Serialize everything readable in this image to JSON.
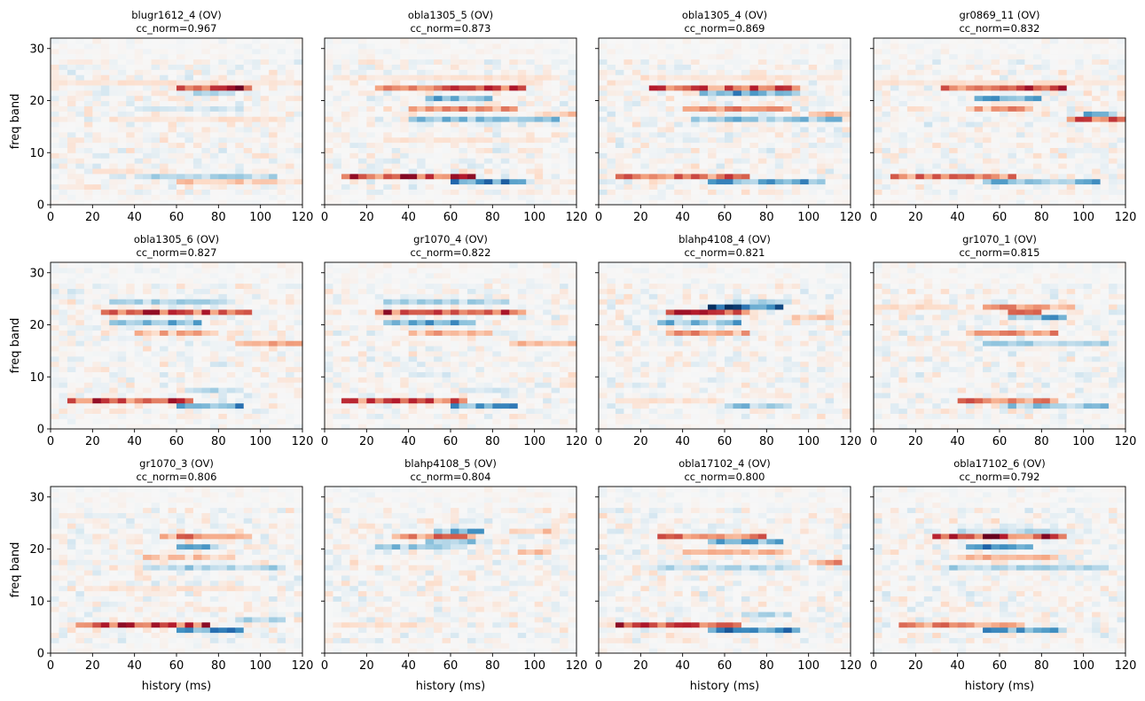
{
  "figure": {
    "xlabel": "history (ms)",
    "ylabel": "freq band",
    "colormap": "RdBu_r"
  },
  "chart_data": [
    {
      "type": "heatmap",
      "title": "blugr1612_4 (OV)",
      "subtitle": "cc_norm=0.967",
      "xlim": [
        0,
        120
      ],
      "ylim": [
        0,
        32
      ],
      "xticks": [
        0,
        20,
        40,
        60,
        80,
        100,
        120
      ],
      "yticks": [
        0,
        10,
        20,
        30
      ],
      "features": [
        {
          "band": 22,
          "from": 60,
          "to": 95,
          "value": 0.9
        },
        {
          "band": 23,
          "from": 65,
          "to": 80,
          "value": -0.5
        },
        {
          "band": 21,
          "from": 70,
          "to": 85,
          "value": -0.4
        },
        {
          "band": 23,
          "from": 0,
          "to": 120,
          "value": 0.15
        },
        {
          "band": 18,
          "from": 40,
          "to": 90,
          "value": -0.2
        },
        {
          "band": 16,
          "from": 30,
          "to": 110,
          "value": 0.15
        },
        {
          "band": 5,
          "from": 40,
          "to": 105,
          "value": -0.35
        },
        {
          "band": 4,
          "from": 60,
          "to": 110,
          "value": 0.3
        },
        {
          "band": 6,
          "from": 20,
          "to": 60,
          "value": 0.15
        }
      ]
    },
    {
      "type": "heatmap",
      "title": "obla1305_5 (OV)",
      "subtitle": "cc_norm=0.873",
      "xlim": [
        0,
        120
      ],
      "ylim": [
        0,
        32
      ],
      "xticks": [
        0,
        20,
        40,
        60,
        80,
        100,
        120
      ],
      "yticks": [
        0,
        10,
        20,
        30
      ],
      "features": [
        {
          "band": 22,
          "from": 25,
          "to": 95,
          "value": 0.7
        },
        {
          "band": 20,
          "from": 50,
          "to": 80,
          "value": -0.55
        },
        {
          "band": 18,
          "from": 40,
          "to": 90,
          "value": 0.5
        },
        {
          "band": 16,
          "from": 40,
          "to": 110,
          "value": -0.45
        },
        {
          "band": 17,
          "from": 100,
          "to": 120,
          "value": 0.35
        },
        {
          "band": 5,
          "from": 10,
          "to": 70,
          "value": 0.8
        },
        {
          "band": 4,
          "from": 60,
          "to": 95,
          "value": -0.75
        },
        {
          "band": 12,
          "from": 30,
          "to": 100,
          "value": 0.15
        },
        {
          "band": 24,
          "from": 20,
          "to": 110,
          "value": 0.15
        }
      ]
    },
    {
      "type": "heatmap",
      "title": "obla1305_4 (OV)",
      "subtitle": "cc_norm=0.869",
      "xlim": [
        0,
        120
      ],
      "ylim": [
        0,
        32
      ],
      "xticks": [
        0,
        20,
        40,
        60,
        80,
        100,
        120
      ],
      "yticks": [
        0,
        10,
        20,
        30
      ],
      "features": [
        {
          "band": 22,
          "from": 25,
          "to": 95,
          "value": 0.7
        },
        {
          "band": 21,
          "from": 50,
          "to": 95,
          "value": -0.65
        },
        {
          "band": 18,
          "from": 40,
          "to": 90,
          "value": 0.45
        },
        {
          "band": 16,
          "from": 45,
          "to": 115,
          "value": -0.45
        },
        {
          "band": 17,
          "from": 100,
          "to": 120,
          "value": 0.4
        },
        {
          "band": 5,
          "from": 10,
          "to": 70,
          "value": 0.6
        },
        {
          "band": 4,
          "from": 55,
          "to": 105,
          "value": -0.6
        },
        {
          "band": 24,
          "from": 20,
          "to": 110,
          "value": 0.15
        }
      ]
    },
    {
      "type": "heatmap",
      "title": "gr0869_11 (OV)",
      "subtitle": "cc_norm=0.832",
      "xlim": [
        0,
        120
      ],
      "ylim": [
        0,
        32
      ],
      "xticks": [
        0,
        20,
        40,
        60,
        80,
        100,
        120
      ],
      "yticks": [
        0,
        10,
        20,
        30
      ],
      "features": [
        {
          "band": 22,
          "from": 35,
          "to": 90,
          "value": 0.7
        },
        {
          "band": 20,
          "from": 50,
          "to": 80,
          "value": -0.6
        },
        {
          "band": 18,
          "from": 45,
          "to": 75,
          "value": 0.45
        },
        {
          "band": 16,
          "from": 95,
          "to": 120,
          "value": 0.65
        },
        {
          "band": 17,
          "from": 100,
          "to": 115,
          "value": -0.5
        },
        {
          "band": 5,
          "from": 10,
          "to": 65,
          "value": 0.6
        },
        {
          "band": 4,
          "from": 55,
          "to": 105,
          "value": -0.55
        },
        {
          "band": 23,
          "from": 0,
          "to": 120,
          "value": 0.15
        }
      ]
    },
    {
      "type": "heatmap",
      "title": "obla1305_6 (OV)",
      "subtitle": "cc_norm=0.827",
      "xlim": [
        0,
        120
      ],
      "ylim": [
        0,
        32
      ],
      "xticks": [
        0,
        20,
        40,
        60,
        80,
        100,
        120
      ],
      "yticks": [
        0,
        10,
        20,
        30
      ],
      "features": [
        {
          "band": 22,
          "from": 25,
          "to": 95,
          "value": 0.75
        },
        {
          "band": 20,
          "from": 30,
          "to": 70,
          "value": -0.6
        },
        {
          "band": 18,
          "from": 40,
          "to": 80,
          "value": 0.4
        },
        {
          "band": 24,
          "from": 30,
          "to": 85,
          "value": -0.35
        },
        {
          "band": 16,
          "from": 90,
          "to": 120,
          "value": 0.4
        },
        {
          "band": 5,
          "from": 10,
          "to": 65,
          "value": 0.75
        },
        {
          "band": 4,
          "from": 60,
          "to": 90,
          "value": -0.65
        },
        {
          "band": 7,
          "from": 65,
          "to": 85,
          "value": -0.3
        }
      ]
    },
    {
      "type": "heatmap",
      "title": "gr1070_4 (OV)",
      "subtitle": "cc_norm=0.822",
      "xlim": [
        0,
        120
      ],
      "ylim": [
        0,
        32
      ],
      "xticks": [
        0,
        20,
        40,
        60,
        80,
        100,
        120
      ],
      "yticks": [
        0,
        10,
        20,
        30
      ],
      "features": [
        {
          "band": 22,
          "from": 25,
          "to": 95,
          "value": 0.75
        },
        {
          "band": 20,
          "from": 30,
          "to": 70,
          "value": -0.6
        },
        {
          "band": 18,
          "from": 40,
          "to": 80,
          "value": 0.4
        },
        {
          "band": 24,
          "from": 30,
          "to": 85,
          "value": -0.35
        },
        {
          "band": 16,
          "from": 90,
          "to": 120,
          "value": 0.4
        },
        {
          "band": 5,
          "from": 10,
          "to": 65,
          "value": 0.7
        },
        {
          "band": 4,
          "from": 60,
          "to": 90,
          "value": -0.6
        },
        {
          "band": 7,
          "from": 65,
          "to": 85,
          "value": -0.3
        }
      ]
    },
    {
      "type": "heatmap",
      "title": "blahp4108_4 (OV)",
      "subtitle": "cc_norm=0.821",
      "xlim": [
        0,
        120
      ],
      "ylim": [
        0,
        32
      ],
      "xticks": [
        0,
        20,
        40,
        60,
        80,
        100,
        120
      ],
      "yticks": [
        0,
        10,
        20,
        30
      ],
      "features": [
        {
          "band": 23,
          "from": 55,
          "to": 85,
          "value": -0.95
        },
        {
          "band": 22,
          "from": 35,
          "to": 70,
          "value": 0.75
        },
        {
          "band": 20,
          "from": 30,
          "to": 65,
          "value": -0.5
        },
        {
          "band": 18,
          "from": 35,
          "to": 70,
          "value": 0.45
        },
        {
          "band": 24,
          "from": 60,
          "to": 90,
          "value": -0.35
        },
        {
          "band": 21,
          "from": 95,
          "to": 110,
          "value": 0.25
        },
        {
          "band": 4,
          "from": 60,
          "to": 90,
          "value": -0.4
        },
        {
          "band": 5,
          "from": 10,
          "to": 60,
          "value": 0.15
        }
      ]
    },
    {
      "type": "heatmap",
      "title": "gr1070_1 (OV)",
      "subtitle": "cc_norm=0.815",
      "xlim": [
        0,
        120
      ],
      "ylim": [
        0,
        32
      ],
      "xticks": [
        0,
        20,
        40,
        60,
        80,
        100,
        120
      ],
      "yticks": [
        0,
        10,
        20,
        30
      ],
      "features": [
        {
          "band": 23,
          "from": 55,
          "to": 95,
          "value": 0.45
        },
        {
          "band": 22,
          "from": 65,
          "to": 80,
          "value": 0.9
        },
        {
          "band": 21,
          "from": 65,
          "to": 90,
          "value": -0.55
        },
        {
          "band": 18,
          "from": 45,
          "to": 85,
          "value": 0.45
        },
        {
          "band": 16,
          "from": 55,
          "to": 110,
          "value": -0.35
        },
        {
          "band": 5,
          "from": 40,
          "to": 85,
          "value": 0.55
        },
        {
          "band": 4,
          "from": 60,
          "to": 110,
          "value": -0.4
        },
        {
          "band": 23,
          "from": 0,
          "to": 40,
          "value": 0.2
        }
      ]
    },
    {
      "type": "heatmap",
      "title": "gr1070_3 (OV)",
      "subtitle": "cc_norm=0.806",
      "xlim": [
        0,
        120
      ],
      "ylim": [
        0,
        32
      ],
      "xticks": [
        0,
        20,
        40,
        60,
        80,
        100,
        120
      ],
      "yticks": [
        0,
        10,
        20,
        30
      ],
      "features": [
        {
          "band": 22,
          "from": 55,
          "to": 95,
          "value": 0.55
        },
        {
          "band": 20,
          "from": 60,
          "to": 80,
          "value": -0.55
        },
        {
          "band": 18,
          "from": 45,
          "to": 85,
          "value": 0.3
        },
        {
          "band": 16,
          "from": 45,
          "to": 110,
          "value": -0.35
        },
        {
          "band": 5,
          "from": 15,
          "to": 75,
          "value": 0.75
        },
        {
          "band": 4,
          "from": 60,
          "to": 90,
          "value": -0.7
        },
        {
          "band": 6,
          "from": 90,
          "to": 110,
          "value": -0.4
        },
        {
          "band": 12,
          "from": 20,
          "to": 100,
          "value": 0.15
        }
      ]
    },
    {
      "type": "heatmap",
      "title": "blahp4108_5 (OV)",
      "subtitle": "cc_norm=0.804",
      "xlim": [
        0,
        120
      ],
      "ylim": [
        0,
        32
      ],
      "xticks": [
        0,
        20,
        40,
        60,
        80,
        100,
        120
      ],
      "yticks": [
        0,
        10,
        20,
        30
      ],
      "features": [
        {
          "band": 22,
          "from": 35,
          "to": 70,
          "value": 0.55
        },
        {
          "band": 21,
          "from": 50,
          "to": 70,
          "value": -0.45
        },
        {
          "band": 20,
          "from": 25,
          "to": 65,
          "value": -0.4
        },
        {
          "band": 23,
          "from": 55,
          "to": 75,
          "value": -0.5
        },
        {
          "band": 19,
          "from": 95,
          "to": 105,
          "value": 0.4
        },
        {
          "band": 23,
          "from": 90,
          "to": 110,
          "value": 0.3
        },
        {
          "band": 5,
          "from": 10,
          "to": 60,
          "value": 0.15
        }
      ]
    },
    {
      "type": "heatmap",
      "title": "obla17102_4 (OV)",
      "subtitle": "cc_norm=0.800",
      "xlim": [
        0,
        120
      ],
      "ylim": [
        0,
        32
      ],
      "xticks": [
        0,
        20,
        40,
        60,
        80,
        100,
        120
      ],
      "yticks": [
        0,
        10,
        20,
        30
      ],
      "features": [
        {
          "band": 22,
          "from": 30,
          "to": 80,
          "value": 0.6
        },
        {
          "band": 21,
          "from": 55,
          "to": 85,
          "value": -0.5
        },
        {
          "band": 19,
          "from": 40,
          "to": 90,
          "value": 0.35
        },
        {
          "band": 17,
          "from": 100,
          "to": 115,
          "value": 0.55
        },
        {
          "band": 16,
          "from": 30,
          "to": 95,
          "value": -0.3
        },
        {
          "band": 5,
          "from": 10,
          "to": 65,
          "value": 0.85
        },
        {
          "band": 4,
          "from": 55,
          "to": 95,
          "value": -0.75
        },
        {
          "band": 7,
          "from": 70,
          "to": 90,
          "value": -0.3
        }
      ]
    },
    {
      "type": "heatmap",
      "title": "obla17102_6 (OV)",
      "subtitle": "cc_norm=0.792",
      "xlim": [
        0,
        120
      ],
      "ylim": [
        0,
        32
      ],
      "xticks": [
        0,
        20,
        40,
        60,
        80,
        100,
        120
      ],
      "yticks": [
        0,
        10,
        20,
        30
      ],
      "features": [
        {
          "band": 22,
          "from": 30,
          "to": 90,
          "value": 0.85
        },
        {
          "band": 20,
          "from": 45,
          "to": 75,
          "value": -0.7
        },
        {
          "band": 23,
          "from": 40,
          "to": 90,
          "value": -0.3
        },
        {
          "band": 18,
          "from": 40,
          "to": 85,
          "value": 0.35
        },
        {
          "band": 16,
          "from": 35,
          "to": 110,
          "value": -0.35
        },
        {
          "band": 5,
          "from": 15,
          "to": 70,
          "value": 0.55
        },
        {
          "band": 4,
          "from": 55,
          "to": 90,
          "value": -0.6
        }
      ]
    }
  ]
}
